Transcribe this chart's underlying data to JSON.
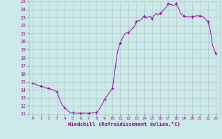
{
  "line_color": "#990099",
  "marker": "+",
  "xlim": [
    -0.5,
    23.5
  ],
  "ylim": [
    11,
    25
  ],
  "yticks": [
    11,
    12,
    13,
    14,
    15,
    16,
    17,
    18,
    19,
    20,
    21,
    22,
    23,
    24,
    25
  ],
  "xticks": [
    0,
    1,
    2,
    3,
    4,
    5,
    6,
    7,
    8,
    9,
    10,
    11,
    12,
    13,
    14,
    15,
    16,
    17,
    18,
    19,
    20,
    21,
    22,
    23
  ],
  "xlabel": "Windchill (Refroidissement éolien,°C)",
  "background_color": "#cce8e8",
  "grid_color": "#b0c8c8",
  "tick_color": "#880088",
  "label_color": "#880088",
  "curve_x": [
    0.0,
    0.25,
    0.5,
    0.75,
    1.0,
    1.25,
    1.5,
    1.75,
    2.0,
    2.25,
    2.5,
    2.75,
    3.0,
    3.2,
    3.4,
    3.6,
    3.8,
    4.0,
    4.2,
    4.4,
    4.6,
    4.8,
    5.0,
    5.2,
    5.4,
    5.6,
    5.8,
    6.0,
    6.2,
    6.4,
    6.6,
    6.8,
    7.0,
    7.2,
    7.5,
    7.8,
    8.0,
    8.3,
    8.6,
    9.0,
    9.3,
    9.6,
    10.0,
    10.2,
    10.4,
    10.6,
    10.8,
    11.0,
    11.2,
    11.4,
    11.6,
    11.8,
    12.0,
    12.2,
    12.5,
    12.8,
    13.0,
    13.3,
    13.6,
    14.0,
    14.2,
    14.4,
    14.6,
    14.8,
    15.0,
    15.1,
    15.2,
    15.3,
    15.4,
    15.5,
    15.6,
    15.7,
    15.8,
    15.9,
    16.0,
    16.1,
    16.2,
    16.3,
    16.4,
    16.5,
    16.6,
    16.7,
    16.8,
    16.9,
    17.0,
    17.2,
    17.4,
    17.6,
    17.8,
    18.0,
    18.3,
    18.6,
    19.0,
    19.3,
    19.6,
    20.0,
    20.3,
    20.6,
    21.0,
    21.3,
    21.6,
    22.0,
    22.3,
    22.6,
    23.0
  ],
  "curve_y": [
    14.8,
    14.75,
    14.6,
    14.5,
    14.5,
    14.4,
    14.3,
    14.2,
    14.2,
    14.1,
    14.0,
    13.9,
    13.8,
    13.3,
    12.8,
    12.3,
    12.0,
    11.8,
    11.6,
    11.4,
    11.25,
    11.15,
    11.15,
    11.1,
    11.1,
    11.1,
    11.1,
    11.1,
    11.1,
    11.1,
    11.1,
    11.1,
    11.1,
    11.12,
    11.15,
    11.18,
    11.2,
    11.5,
    12.0,
    12.8,
    13.2,
    13.6,
    14.2,
    15.5,
    17.0,
    18.5,
    19.3,
    19.8,
    20.3,
    20.7,
    21.0,
    21.1,
    21.1,
    21.3,
    21.6,
    21.9,
    22.5,
    22.6,
    22.7,
    23.2,
    22.9,
    23.0,
    23.1,
    23.15,
    22.8,
    23.0,
    23.2,
    23.3,
    23.4,
    23.5,
    23.4,
    23.3,
    23.4,
    23.5,
    23.5,
    23.6,
    23.7,
    23.8,
    23.9,
    24.0,
    24.1,
    24.2,
    24.3,
    24.5,
    24.7,
    24.65,
    24.6,
    24.55,
    24.5,
    24.7,
    24.2,
    23.5,
    23.2,
    23.1,
    23.1,
    23.1,
    23.15,
    23.2,
    23.2,
    23.15,
    22.9,
    22.5,
    21.5,
    19.5,
    18.5
  ],
  "marker_x": [
    0,
    1,
    2,
    3,
    4,
    5,
    6,
    7,
    8,
    9,
    10,
    11,
    12,
    13,
    14,
    15,
    16,
    17,
    18,
    19,
    20,
    21,
    22,
    23
  ],
  "marker_y": [
    14.8,
    14.5,
    14.2,
    13.8,
    11.8,
    11.15,
    11.1,
    11.1,
    11.2,
    12.8,
    14.2,
    19.8,
    21.1,
    22.5,
    23.2,
    22.8,
    23.5,
    24.7,
    24.7,
    23.2,
    23.1,
    23.2,
    22.5,
    18.5
  ]
}
